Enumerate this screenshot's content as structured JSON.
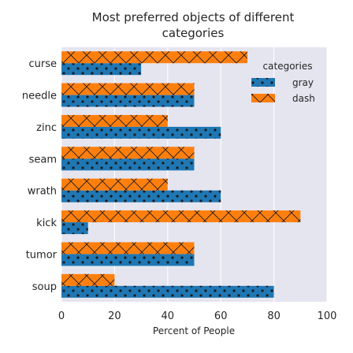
{
  "chart_data": {
    "type": "bar",
    "orientation": "horizontal",
    "title": "Most preferred objects of different categories",
    "title_lines": [
      "Most preferred objects of different",
      "categories"
    ],
    "xlabel": "Percent of People",
    "ylabel": "",
    "xlim": [
      0,
      100
    ],
    "xticks": [
      0,
      20,
      40,
      60,
      80,
      100
    ],
    "categories": [
      "curse",
      "needle",
      "zinc",
      "seam",
      "wrath",
      "kick",
      "tumor",
      "soup"
    ],
    "series": [
      {
        "name": "gray",
        "color": "#1f77b4",
        "hatch": "dots",
        "values": [
          30,
          50,
          60,
          50,
          60,
          10,
          50,
          80
        ]
      },
      {
        "name": "dash",
        "color": "#ff7f0e",
        "hatch": "cross",
        "values": [
          70,
          50,
          40,
          50,
          40,
          90,
          50,
          20
        ]
      }
    ],
    "legend": {
      "title": "categories",
      "placement": "top-right"
    },
    "grid": true,
    "background": "#e5e5f0"
  }
}
